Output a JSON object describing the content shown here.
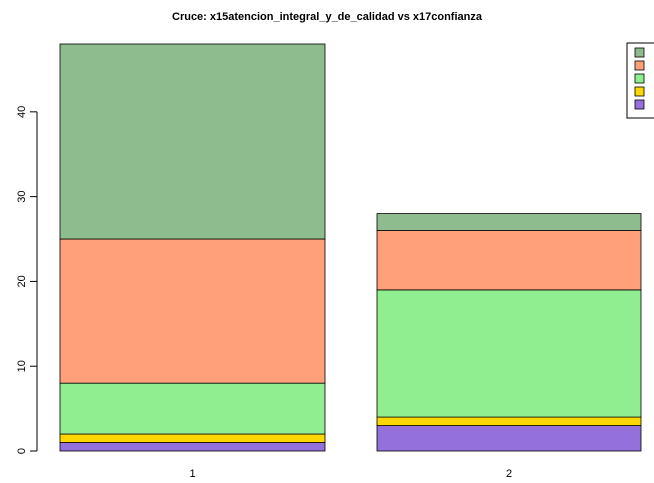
{
  "chart_data": {
    "type": "stacked_bar",
    "title": "Cruce: x15atencion_integral_y_de_calidad vs x17confianza",
    "categories": [
      "1",
      "2"
    ],
    "series": [
      {
        "color": "#9370db",
        "values": [
          1,
          3
        ]
      },
      {
        "color": "#ffd700",
        "values": [
          1,
          1
        ]
      },
      {
        "color": "#90ee90",
        "values": [
          6,
          15
        ]
      },
      {
        "color": "#ffa07a",
        "values": [
          17,
          7
        ]
      },
      {
        "color": "#8fbc8f",
        "values": [
          23,
          2
        ]
      }
    ],
    "ylim": [
      0,
      48
    ],
    "yticks": [
      0,
      10,
      20,
      30,
      40
    ],
    "legend": "top-right"
  }
}
